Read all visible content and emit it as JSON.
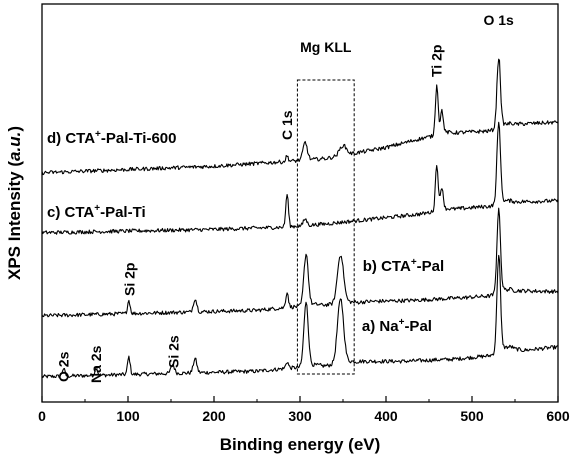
{
  "chart_data": {
    "type": "line",
    "xlabel": "Binding energy (eV)",
    "ylabel_main": "XPS Intensity (",
    "ylabel_unit": "a.u.",
    "ylabel_end": ")",
    "xlim": [
      0,
      600
    ],
    "xticks": [
      "0",
      "100",
      "200",
      "300",
      "400",
      "500",
      "600"
    ],
    "yticks_shown": false,
    "grid": false,
    "annotation_box": {
      "x_from": 297,
      "x_to": 363,
      "label": "Mg KLL"
    },
    "peak_labels": [
      {
        "text": "O 2s",
        "x": 25
      },
      {
        "text": "Na 2s",
        "x": 63
      },
      {
        "text": "Si 2p",
        "x": 102
      },
      {
        "text": "Si 2s",
        "x": 153
      },
      {
        "text": "C 1s",
        "x": 285
      },
      {
        "text": "Ti 2p",
        "x": 459
      },
      {
        "text": "O 1s",
        "x": 531
      }
    ],
    "series": [
      {
        "name": "a) Na⁺-Pal",
        "label_prefix": "a) Na",
        "label_sup": "+",
        "label_suffix": "-Pal",
        "baseline": [
          [
            0,
            0.3
          ],
          [
            150,
            0.6
          ],
          [
            250,
            0.8
          ],
          [
            290,
            1.1
          ],
          [
            330,
            1.3
          ],
          [
            370,
            1.7
          ],
          [
            420,
            1.7
          ],
          [
            480,
            1.9
          ],
          [
            520,
            2.2
          ],
          [
            545,
            2.9
          ],
          [
            560,
            2.7
          ],
          [
            600,
            3.0
          ]
        ],
        "peaks": [
          {
            "x": 25,
            "h": 0.7,
            "w": 1.5
          },
          {
            "x": 63,
            "h": 0.7,
            "w": 1.5
          },
          {
            "x": 101,
            "h": 1.6,
            "w": 1.5
          },
          {
            "x": 152,
            "h": 0.8,
            "w": 2.0
          },
          {
            "x": 178,
            "h": 1.3,
            "w": 2.0
          },
          {
            "x": 285,
            "h": 0.6,
            "w": 1.5
          },
          {
            "x": 307,
            "h": 5.8,
            "w": 2.5
          },
          {
            "x": 347,
            "h": 5.8,
            "w": 3.5
          },
          {
            "x": 531,
            "h": 8.8,
            "w": 2.0
          }
        ]
      },
      {
        "name": "b) CTA⁺-Pal",
        "label_prefix": "b) CTA",
        "label_sup": "+",
        "label_suffix": "-Pal",
        "baseline": [
          [
            0,
            0.2
          ],
          [
            150,
            0.5
          ],
          [
            250,
            0.7
          ],
          [
            290,
            1.0
          ],
          [
            330,
            1.2
          ],
          [
            380,
            1.5
          ],
          [
            430,
            1.6
          ],
          [
            480,
            1.8
          ],
          [
            520,
            2.0
          ],
          [
            545,
            2.5
          ],
          [
            600,
            2.4
          ]
        ],
        "peaks": [
          {
            "x": 101,
            "h": 1.2,
            "w": 1.5
          },
          {
            "x": 178,
            "h": 1.2,
            "w": 2.0
          },
          {
            "x": 285,
            "h": 1.4,
            "w": 1.5
          },
          {
            "x": 307,
            "h": 4.7,
            "w": 2.5
          },
          {
            "x": 347,
            "h": 4.4,
            "w": 3.5
          },
          {
            "x": 531,
            "h": 7.6,
            "w": 2.0
          }
        ]
      },
      {
        "name": "c) CTA⁺-Pal-Ti",
        "label_prefix": "c) CTA",
        "label_sup": "+",
        "label_suffix": "-Pal-Ti",
        "baseline": [
          [
            0,
            0.3
          ],
          [
            200,
            0.6
          ],
          [
            280,
            0.8
          ],
          [
            330,
            1.1
          ],
          [
            380,
            1.5
          ],
          [
            440,
            2.0
          ],
          [
            470,
            2.4
          ],
          [
            520,
            2.7
          ],
          [
            545,
            3.1
          ],
          [
            600,
            3.2
          ]
        ],
        "peaks": [
          {
            "x": 285,
            "h": 3.0,
            "w": 1.5
          },
          {
            "x": 306,
            "h": 0.6,
            "w": 2.0
          },
          {
            "x": 459,
            "h": 4.2,
            "w": 1.6
          },
          {
            "x": 465,
            "h": 2.0,
            "w": 1.6
          },
          {
            "x": 531,
            "h": 7.4,
            "w": 2.0
          }
        ]
      },
      {
        "name": "d) CTA⁺-Pal-Ti-600",
        "label_prefix": "d) CTA",
        "label_sup": "+",
        "label_suffix": "-Pal-Ti-600",
        "baseline": [
          [
            0,
            0.2
          ],
          [
            200,
            0.8
          ],
          [
            280,
            1.2
          ],
          [
            330,
            1.5
          ],
          [
            400,
            2.5
          ],
          [
            440,
            3.3
          ],
          [
            470,
            3.8
          ],
          [
            520,
            4.0
          ],
          [
            545,
            4.6
          ],
          [
            600,
            4.8
          ]
        ],
        "peaks": [
          {
            "x": 285,
            "h": 0.5,
            "w": 1.5
          },
          {
            "x": 306,
            "h": 1.6,
            "w": 2.5
          },
          {
            "x": 350,
            "h": 0.9,
            "w": 4.0
          },
          {
            "x": 459,
            "h": 4.5,
            "w": 1.6
          },
          {
            "x": 465,
            "h": 2.0,
            "w": 1.6
          },
          {
            "x": 531,
            "h": 6.4,
            "w": 2.0
          }
        ]
      }
    ]
  }
}
